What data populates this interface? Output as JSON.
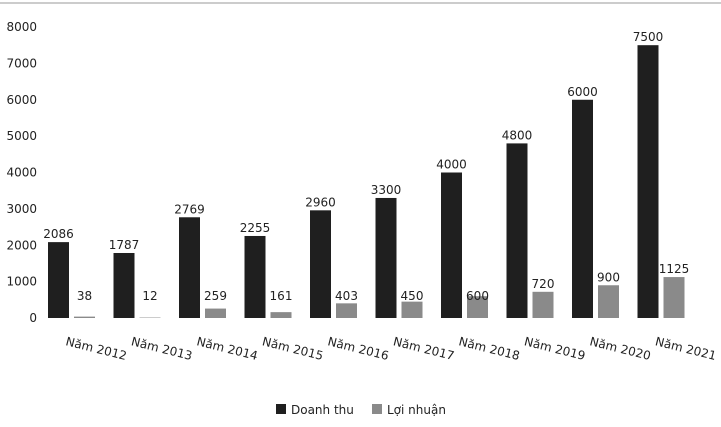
{
  "chart_data": {
    "type": "bar",
    "categories": [
      "Năm 2012",
      "Năm 2013",
      "Năm 2014",
      "Năm 2015",
      "Năm 2016",
      "Năm 2017",
      "Năm 2018",
      "Năm 2019",
      "Năm 2020",
      "Năm 2021"
    ],
    "series": [
      {
        "name": "Doanh thu",
        "color": "#1f1f1f",
        "values": [
          2086,
          1787,
          2769,
          2255,
          2960,
          3300,
          4000,
          4800,
          6000,
          7500
        ]
      },
      {
        "name": "Lợi nhuận",
        "color": "#8a8a8a",
        "values": [
          38,
          12,
          259,
          161,
          403,
          450,
          600,
          720,
          900,
          1125
        ]
      }
    ],
    "ylim": [
      0,
      8000
    ],
    "yticks": [
      0,
      1000,
      2000,
      3000,
      4000,
      5000,
      6000,
      7000,
      8000
    ],
    "grid": false,
    "legend_position": "bottom-center",
    "data_labels": true
  }
}
